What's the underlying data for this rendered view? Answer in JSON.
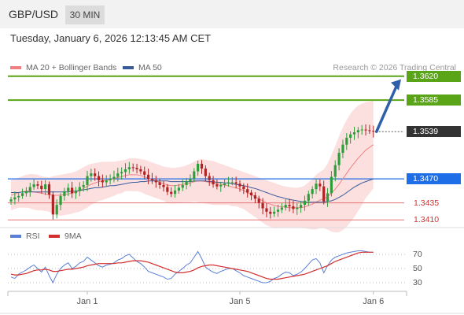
{
  "header": {
    "symbol": "GBP/USD",
    "timeframe": "30 MIN",
    "datetime": "Tuesday, January 6, 2026 12:13:45 AM CET"
  },
  "legend": {
    "ma20": {
      "label": "MA 20 + Bollinger Bands",
      "color": "#f08080"
    },
    "ma50": {
      "label": "MA 50",
      "color": "#3a5b9a"
    },
    "credit": "Research © 2026 Trading Central"
  },
  "colors": {
    "bull": "#2e9e3a",
    "bear": "#b22222",
    "resistance": "#5aa417",
    "pivot": "#1e6ee8",
    "support": "#e57373",
    "current": "#333333",
    "arrow": "#2e5fa8",
    "band": "#fbd6d6"
  },
  "levels": {
    "r2": {
      "label": "1.3620",
      "value": 1.362
    },
    "r1": {
      "label": "1.3585",
      "value": 1.3585
    },
    "current": {
      "label": "1.3539",
      "value": 1.3539
    },
    "pivot": {
      "label": "1.3470",
      "value": 1.347
    },
    "s1": {
      "label": "1.3435",
      "value": 1.3435
    },
    "s2": {
      "label": "1.3410",
      "value": 1.341
    }
  },
  "rsi_legend": {
    "rsi": {
      "label": "RSI",
      "color": "#5b7fd6"
    },
    "ma9": {
      "label": "9MA",
      "color": "#d32f2f"
    }
  },
  "rsi_levels": [
    {
      "label": "70",
      "value": 70
    },
    {
      "label": "50",
      "value": 50
    },
    {
      "label": "30",
      "value": 30
    }
  ],
  "x_labels": [
    {
      "label": "Jan 1",
      "index": 20
    },
    {
      "label": "Jan 5",
      "index": 60
    },
    {
      "label": "Jan 6",
      "index": 95
    }
  ],
  "chart_data": {
    "type": "candlestick",
    "ylim": [
      1.34,
      1.363
    ],
    "candle_close": [
      1.344,
      1.3443,
      1.3445,
      1.3449,
      1.3452,
      1.3458,
      1.3462,
      1.346,
      1.3455,
      1.3462,
      1.3447,
      1.3418,
      1.3432,
      1.3445,
      1.3452,
      1.3457,
      1.3449,
      1.3452,
      1.3458,
      1.3461,
      1.3474,
      1.3478,
      1.3474,
      1.3468,
      1.3465,
      1.3468,
      1.347,
      1.3473,
      1.3478,
      1.348,
      1.3484,
      1.3487,
      1.3486,
      1.3484,
      1.3481,
      1.3476,
      1.347,
      1.3468,
      1.3465,
      1.3461,
      1.3458,
      1.3451,
      1.3448,
      1.3453,
      1.3457,
      1.3461,
      1.3466,
      1.347,
      1.3481,
      1.3492,
      1.3485,
      1.3474,
      1.3468,
      1.3462,
      1.3459,
      1.3461,
      1.3463,
      1.3465,
      1.3465,
      1.3463,
      1.3459,
      1.3455,
      1.345,
      1.3446,
      1.3441,
      1.3435,
      1.3427,
      1.3422,
      1.3419,
      1.3422,
      1.3425,
      1.3428,
      1.3432,
      1.343,
      1.3426,
      1.3428,
      1.3432,
      1.3438,
      1.3448,
      1.3455,
      1.3463,
      1.3459,
      1.3437,
      1.3449,
      1.3473,
      1.349,
      1.3508,
      1.352,
      1.353,
      1.3535,
      1.3538,
      1.3541,
      1.3542,
      1.3541,
      1.354,
      1.3539
    ],
    "ma20": [
      1.3446,
      1.3448,
      1.345,
      1.3451,
      1.3452,
      1.3452,
      1.3451,
      1.345,
      1.3449,
      1.3448,
      1.3447,
      1.3446,
      1.3446,
      1.3446,
      1.3447,
      1.3448,
      1.3449,
      1.3451,
      1.3453,
      1.3456,
      1.3459,
      1.3462,
      1.3464,
      1.3466,
      1.3467,
      1.3468,
      1.3469,
      1.347,
      1.3472,
      1.3473,
      1.3475,
      1.3476,
      1.3476,
      1.3476,
      1.3475,
      1.3473,
      1.3471,
      1.3469,
      1.3467,
      1.3465,
      1.3463,
      1.3461,
      1.346,
      1.346,
      1.3461,
      1.3462,
      1.3463,
      1.3464,
      1.3466,
      1.3467,
      1.3467,
      1.3466,
      1.3465,
      1.3464,
      1.3463,
      1.3462,
      1.3461,
      1.346,
      1.3458,
      1.3457,
      1.3455,
      1.3453,
      1.345,
      1.3447,
      1.3444,
      1.3441,
      1.3438,
      1.3435,
      1.3433,
      1.3431,
      1.343,
      1.3429,
      1.3429,
      1.3428,
      1.3428,
      1.3428,
      1.3428,
      1.3429,
      1.3431,
      1.3433,
      1.3436,
      1.3439,
      1.3441,
      1.3444,
      1.3449,
      1.3455,
      1.3462,
      1.347,
      1.3478,
      1.3486,
      1.3493,
      1.35,
      1.3506,
      1.3512,
      1.3516,
      1.352
    ],
    "upper_band": [
      1.3468,
      1.347,
      1.3472,
      1.3474,
      1.3476,
      1.3477,
      1.3477,
      1.3476,
      1.3474,
      1.3473,
      1.3472,
      1.3474,
      1.3475,
      1.3476,
      1.3477,
      1.3478,
      1.3479,
      1.3481,
      1.3484,
      1.3487,
      1.349,
      1.3492,
      1.3493,
      1.3494,
      1.3495,
      1.3495,
      1.3495,
      1.3495,
      1.3496,
      1.3497,
      1.3498,
      1.35,
      1.35,
      1.35,
      1.3499,
      1.3498,
      1.3496,
      1.3494,
      1.3492,
      1.349,
      1.3488,
      1.3487,
      1.3486,
      1.3486,
      1.3487,
      1.3488,
      1.349,
      1.3492,
      1.3495,
      1.3498,
      1.3499,
      1.3498,
      1.3497,
      1.3496,
      1.3494,
      1.3492,
      1.349,
      1.3488,
      1.3486,
      1.3484,
      1.3482,
      1.348,
      1.3478,
      1.3476,
      1.3474,
      1.3472,
      1.347,
      1.3468,
      1.3466,
      1.3464,
      1.3462,
      1.346,
      1.3459,
      1.3458,
      1.3457,
      1.3457,
      1.3458,
      1.346,
      1.3465,
      1.347,
      1.3476,
      1.348,
      1.3484,
      1.3492,
      1.3505,
      1.3518,
      1.3532,
      1.3545,
      1.3556,
      1.3565,
      1.3572,
      1.3577,
      1.358,
      1.3582,
      1.3583,
      1.3584
    ],
    "lower_band": [
      1.3424,
      1.3426,
      1.3428,
      1.3428,
      1.3428,
      1.3427,
      1.3425,
      1.3424,
      1.3424,
      1.3423,
      1.3422,
      1.3418,
      1.3417,
      1.3416,
      1.3417,
      1.3418,
      1.3419,
      1.3421,
      1.3422,
      1.3425,
      1.3428,
      1.3432,
      1.3435,
      1.3438,
      1.3439,
      1.3441,
      1.3443,
      1.3445,
      1.3448,
      1.3449,
      1.3452,
      1.3452,
      1.3452,
      1.3452,
      1.3451,
      1.3448,
      1.3446,
      1.3444,
      1.3442,
      1.344,
      1.3438,
      1.3435,
      1.3434,
      1.3434,
      1.3435,
      1.3436,
      1.3436,
      1.3436,
      1.3437,
      1.3436,
      1.3435,
      1.3434,
      1.3433,
      1.3432,
      1.3432,
      1.3432,
      1.3432,
      1.3432,
      1.343,
      1.343,
      1.3428,
      1.3426,
      1.3422,
      1.3418,
      1.3414,
      1.341,
      1.3406,
      1.3402,
      1.34,
      1.3398,
      1.3398,
      1.3398,
      1.3399,
      1.3398,
      1.3399,
      1.3399,
      1.3398,
      1.3398,
      1.3397,
      1.3396,
      1.3396,
      1.3398,
      1.3398,
      1.3396,
      1.3393,
      1.3392,
      1.3392,
      1.3395,
      1.34,
      1.3407,
      1.3414,
      1.3423,
      1.3432,
      1.3442,
      1.3449,
      1.3456
    ],
    "ma50": [
      1.345,
      1.345,
      1.345,
      1.3451,
      1.3451,
      1.3451,
      1.3451,
      1.3451,
      1.3451,
      1.3451,
      1.3451,
      1.3451,
      1.3451,
      1.3451,
      1.3451,
      1.3451,
      1.3452,
      1.3452,
      1.3453,
      1.3454,
      1.3455,
      1.3456,
      1.3457,
      1.3457,
      1.3458,
      1.3459,
      1.346,
      1.346,
      1.3461,
      1.3462,
      1.3463,
      1.3464,
      1.3465,
      1.3465,
      1.3466,
      1.3466,
      1.3467,
      1.3467,
      1.3467,
      1.3467,
      1.3467,
      1.3467,
      1.3466,
      1.3466,
      1.3466,
      1.3466,
      1.3466,
      1.3466,
      1.3467,
      1.3467,
      1.3467,
      1.3467,
      1.3466,
      1.3466,
      1.3465,
      1.3465,
      1.3464,
      1.3464,
      1.3463,
      1.3462,
      1.3461,
      1.346,
      1.3459,
      1.3457,
      1.3456,
      1.3454,
      1.3452,
      1.345,
      1.3448,
      1.3446,
      1.3444,
      1.3443,
      1.3441,
      1.344,
      1.3439,
      1.3438,
      1.3437,
      1.3436,
      1.3436,
      1.3436,
      1.3436,
      1.3436,
      1.3436,
      1.3437,
      1.3438,
      1.344,
      1.3443,
      1.3446,
      1.345,
      1.3454,
      1.3458,
      1.3461,
      1.3464,
      1.3466,
      1.3468,
      1.347
    ],
    "rsi": [
      38,
      36,
      42,
      45,
      48,
      52,
      55,
      50,
      45,
      52,
      40,
      30,
      42,
      50,
      55,
      58,
      50,
      53,
      58,
      60,
      66,
      62,
      58,
      54,
      52,
      55,
      56,
      58,
      62,
      64,
      68,
      70,
      65,
      60,
      57,
      52,
      46,
      44,
      42,
      40,
      38,
      35,
      36,
      42,
      46,
      50,
      55,
      58,
      66,
      74,
      64,
      52,
      48,
      45,
      43,
      46,
      48,
      50,
      50,
      47,
      44,
      40,
      38,
      36,
      34,
      32,
      30,
      30,
      32,
      36,
      38,
      42,
      45,
      44,
      40,
      42,
      45,
      50,
      56,
      62,
      64,
      58,
      44,
      54,
      62,
      66,
      68,
      70,
      72,
      73,
      74,
      75,
      75,
      74,
      73,
      73
    ],
    "rsi_ma9": [
      42,
      41,
      41,
      42,
      43,
      45,
      47,
      48,
      48,
      49,
      48,
      46,
      46,
      47,
      48,
      49,
      49,
      50,
      51,
      52,
      54,
      55,
      56,
      57,
      57,
      57,
      57,
      57,
      58,
      58,
      59,
      60,
      61,
      61,
      61,
      60,
      59,
      57,
      55,
      53,
      51,
      49,
      47,
      45,
      44,
      44,
      45,
      46,
      48,
      51,
      53,
      54,
      55,
      55,
      54,
      53,
      52,
      51,
      50,
      49,
      48,
      47,
      46,
      44,
      42,
      40,
      38,
      36,
      35,
      35,
      35,
      36,
      37,
      38,
      39,
      40,
      41,
      42,
      44,
      46,
      48,
      50,
      52,
      54,
      57,
      60,
      62,
      64,
      66,
      68,
      70,
      72,
      73,
      73,
      73,
      73
    ],
    "rsi_ylim": [
      20,
      80
    ]
  }
}
